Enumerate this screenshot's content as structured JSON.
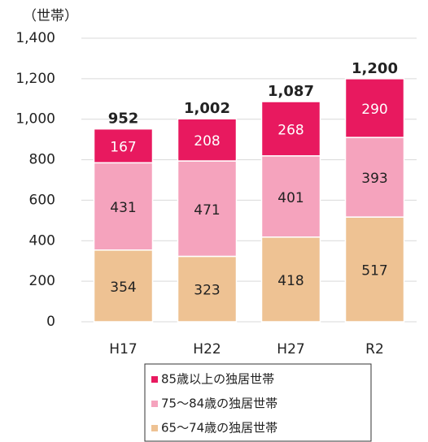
{
  "chart_data": {
    "type": "stacked_bar",
    "y_unit": "（世帯）",
    "categories": [
      "H17",
      "H22",
      "H27",
      "R2"
    ],
    "series": [
      {
        "name": "65〜74歳の独居世帯",
        "color": "#eec293",
        "values": [
          354,
          323,
          418,
          517
        ]
      },
      {
        "name": "75〜84歳の独居世帯",
        "color": "#f5a3bd",
        "values": [
          431,
          471,
          401,
          393
        ]
      },
      {
        "name": "85歳以上の独居世帯",
        "color": "#e8195f",
        "values": [
          167,
          208,
          268,
          290
        ]
      }
    ],
    "totals": [
      952,
      1002,
      1087,
      1200
    ],
    "total_labels": [
      "952",
      "1,002",
      "1,087",
      "1,200"
    ],
    "ylim": [
      0,
      1400
    ],
    "yticks": [
      0,
      200,
      400,
      600,
      800,
      {
        "value": 1000,
        "label": "1,000"
      },
      {
        "value": 1200,
        "label": "1,200"
      },
      {
        "value": 1400,
        "label": "1,400"
      }
    ],
    "grid": true
  }
}
